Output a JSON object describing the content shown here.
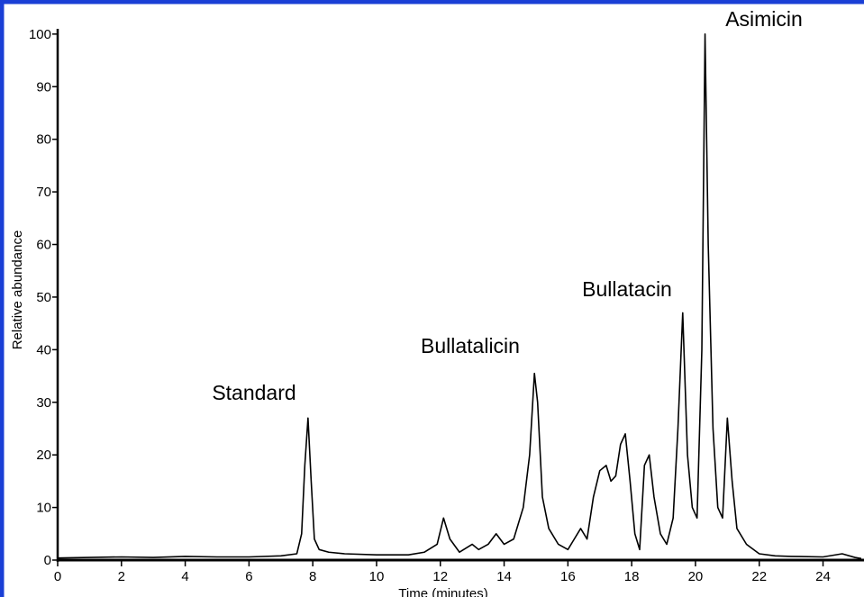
{
  "chart_data": {
    "type": "line",
    "x_label": "Time (minutes)",
    "y_label": "Relative abundance",
    "annotations": [
      "Standard",
      "Bullatalicin",
      "Bullatacin",
      "Asimicin"
    ],
    "color": "#000000",
    "x": [
      0,
      1,
      2,
      3,
      4,
      5,
      6,
      7,
      7.5,
      7.65,
      7.75,
      7.85,
      7.95,
      8.05,
      8.2,
      8.5,
      9,
      10,
      11,
      11.5,
      11.9,
      12.1,
      12.3,
      12.6,
      13,
      13.2,
      13.5,
      13.75,
      14,
      14.3,
      14.6,
      14.8,
      14.95,
      15.05,
      15.2,
      15.4,
      15.7,
      16,
      16.2,
      16.4,
      16.6,
      16.8,
      17,
      17.2,
      17.35,
      17.5,
      17.65,
      17.8,
      17.95,
      18.1,
      18.25,
      18.4,
      18.55,
      18.7,
      18.9,
      19.1,
      19.3,
      19.45,
      19.6,
      19.75,
      19.9,
      20.05,
      20.2,
      20.3,
      20.4,
      20.55,
      20.7,
      20.85,
      21.0,
      21.15,
      21.3,
      21.6,
      22,
      22.5,
      23,
      24,
      24.6,
      25,
      25.2
    ],
    "values": [
      0.4,
      0.5,
      0.6,
      0.5,
      0.7,
      0.6,
      0.6,
      0.8,
      1.2,
      5,
      18,
      27,
      15,
      4,
      2,
      1.5,
      1.2,
      1,
      1,
      1.5,
      3,
      8,
      4,
      1.5,
      3,
      2,
      3,
      5,
      3,
      4,
      10,
      20,
      35.5,
      30,
      12,
      6,
      3,
      2,
      4,
      6,
      4,
      12,
      17,
      18,
      15,
      16,
      22,
      24,
      15,
      5,
      2,
      18,
      20,
      12,
      5,
      3,
      8,
      25,
      47,
      20,
      10,
      8,
      40,
      100,
      60,
      25,
      10,
      8,
      27,
      15,
      6,
      3,
      1.2,
      0.8,
      0.7,
      0.6,
      1.2,
      0.5,
      0.3
    ],
    "xlim": [
      0,
      25.2
    ],
    "ylim": [
      0,
      101
    ],
    "xticks": [
      0,
      2,
      4,
      6,
      8,
      10,
      12,
      14,
      16,
      18,
      20,
      22,
      24
    ],
    "yticks": [
      0,
      10,
      20,
      30,
      40,
      50,
      60,
      70,
      80,
      90,
      100
    ]
  }
}
